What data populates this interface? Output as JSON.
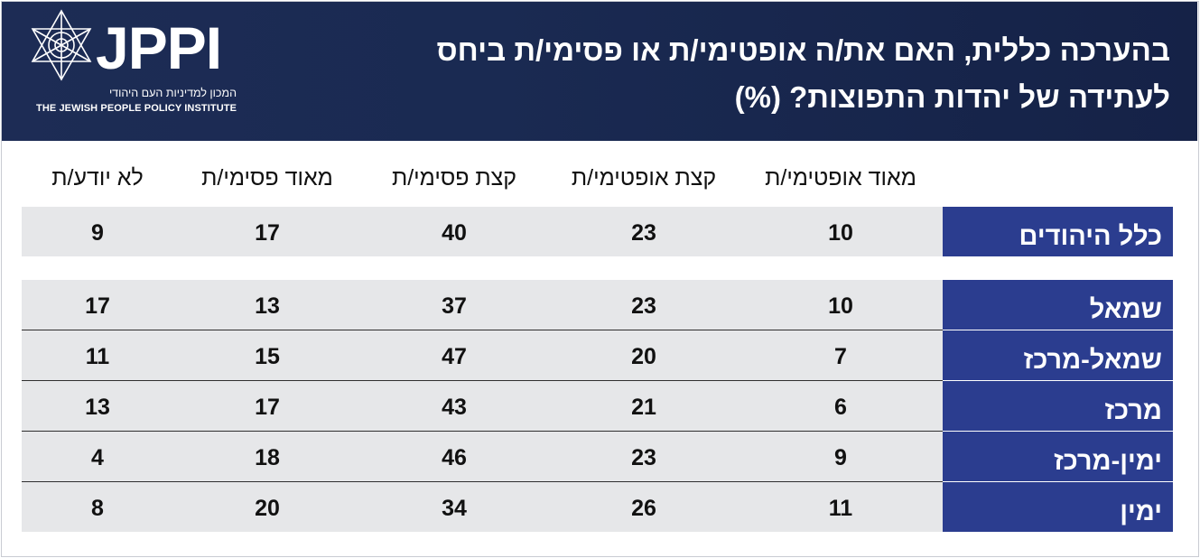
{
  "header": {
    "logo_text": "JPPI",
    "logo_he": "המכון למדיניות העם היהודי",
    "logo_en": "THE JEWISH PEOPLE POLICY INSTITUTE",
    "title_line1": "בהערכה כללית, האם את/ה אופטימי/ת או פסימי/ת ביחס",
    "title_line2": "לעתידה של יהדות התפוצות? (%)"
  },
  "colors": {
    "header_bg": "#1d2c55",
    "label_bg": "#2b3d8f",
    "row_bg": "#e6e7e9"
  },
  "chart_data": {
    "type": "table",
    "title": "בהערכה כללית, האם את/ה אופטימי/ת או פסימי/ת ביחס לעתידה של יהדות התפוצות? (%)",
    "columns": [
      "מאוד אופטימי/ת",
      "קצת אופטימי/ת",
      "קצת פסימי/ת",
      "מאוד פסימי/ת",
      "לא יודע/ת"
    ],
    "rows": [
      {
        "label": "כלל היהודים",
        "values": [
          10,
          23,
          40,
          17,
          9
        ]
      },
      {
        "label": "שמאל",
        "values": [
          10,
          23,
          37,
          13,
          17
        ]
      },
      {
        "label": "שמאל-מרכז",
        "values": [
          7,
          20,
          47,
          15,
          11
        ]
      },
      {
        "label": "מרכז",
        "values": [
          6,
          21,
          43,
          17,
          13
        ]
      },
      {
        "label": "ימין-מרכז",
        "values": [
          9,
          23,
          46,
          18,
          4
        ]
      },
      {
        "label": "ימין",
        "values": [
          11,
          26,
          34,
          20,
          8
        ]
      }
    ]
  }
}
